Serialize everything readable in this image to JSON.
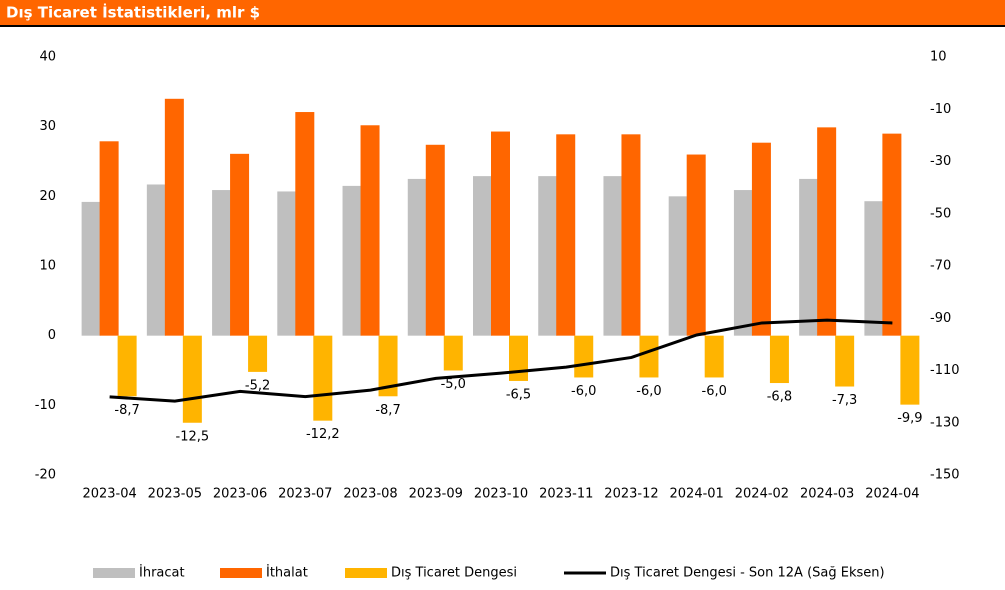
{
  "chart_data": {
    "type": "bar",
    "title": "Dış Ticaret İstatistikleri, mlr $",
    "categories": [
      "2023-04",
      "2023-05",
      "2023-06",
      "2023-07",
      "2023-08",
      "2023-09",
      "2023-10",
      "2023-11",
      "2023-12",
      "2024-01",
      "2024-02",
      "2024-03",
      "2024-04"
    ],
    "series": [
      {
        "name": "İhracat",
        "type": "bar",
        "color": "#bfbfbf",
        "values": [
          19.2,
          21.7,
          20.9,
          20.7,
          21.5,
          22.5,
          22.9,
          22.9,
          22.9,
          20.0,
          20.9,
          22.5,
          19.3
        ]
      },
      {
        "name": "İthalat",
        "type": "bar",
        "color": "#ff6600",
        "values": [
          27.9,
          34.0,
          26.1,
          32.1,
          30.2,
          27.4,
          29.3,
          28.9,
          28.9,
          26.0,
          27.7,
          29.9,
          29.0
        ]
      },
      {
        "name": "Dış Ticaret Dengesi",
        "type": "bar",
        "color": "#ffb400",
        "values": [
          -8.7,
          -12.5,
          -5.2,
          -12.2,
          -8.7,
          -5.0,
          -6.5,
          -6.0,
          -6.0,
          -6.0,
          -6.8,
          -7.3,
          -9.9
        ],
        "value_labels": [
          "-8,7",
          "-12,5",
          "-5,2",
          "-12,2",
          "-8,7",
          "-5,0",
          "-6,5",
          "-6,0",
          "-6,0",
          "-6,0",
          "-6,8",
          "-7,3",
          "-9,9"
        ]
      },
      {
        "name": "Dış Ticaret Dengesi - Son 12A (Sağ Eksen)",
        "type": "line",
        "axis": "y2",
        "color": "#000000",
        "values": [
          -120.1,
          -121.7,
          -118.0,
          -120.0,
          -117.5,
          -113.0,
          -111.0,
          -108.7,
          -105.0,
          -96.4,
          -91.8,
          -90.7,
          -91.8
        ]
      }
    ],
    "ylim": [
      -20,
      40
    ],
    "yticks": [
      -20,
      -10,
      0,
      10,
      20,
      30,
      40
    ],
    "y2lim": [
      -150,
      10
    ],
    "y2ticks": [
      -150,
      -130,
      -110,
      -90,
      -70,
      -50,
      -30,
      -10,
      10
    ],
    "legend": "bottom"
  }
}
